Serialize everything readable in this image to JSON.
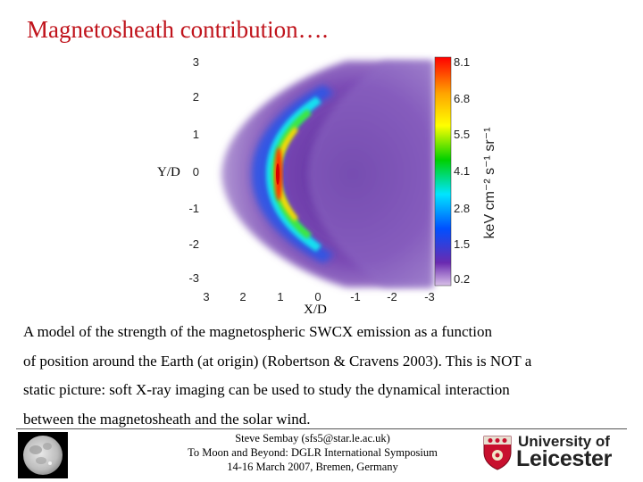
{
  "slide": {
    "title": "Magnetosheath contribution….",
    "figure": {
      "y_axis_label": "Y/D",
      "x_axis_label": "X/D",
      "y_ticks": [
        "3",
        "2",
        "1",
        "0",
        "-1",
        "-2",
        "-3"
      ],
      "x_ticks": [
        "3",
        "2",
        "1",
        "0",
        "-1",
        "-2",
        "-3"
      ],
      "colorbar_ticks": [
        "8.1",
        "6.8",
        "5.5",
        "4.1",
        "2.8",
        "1.5",
        "0.2"
      ],
      "colorbar_unit": "keV cm⁻² s⁻¹ sr⁻¹",
      "colorbar_colors": [
        "#ff0000",
        "#ffa500",
        "#ffff00",
        "#00d000",
        "#00e5ff",
        "#0050ff",
        "#6a2ab0",
        "#d8c0e8"
      ]
    },
    "caption_lines": [
      "A model of the strength of the magnetospheric SWCX emission as a function",
      "of position around the Earth (at origin) (Robertson & Cravens 2003). This is NOT a",
      "static picture: soft X-ray  imaging can be used to study the dynamical interaction",
      "between the magnetosheath and the solar wind."
    ],
    "footer": {
      "line1": "Steve Sembay (sfs5@star.le.ac.uk)",
      "line2": "To Moon and Beyond: DGLR International Symposium",
      "line3": "14-16 March 2007, Bremen, Germany"
    },
    "logo": {
      "line1": "University of",
      "line2": "Leicester",
      "icon": "university-crest-icon"
    },
    "moon_icon": "moon-image"
  }
}
